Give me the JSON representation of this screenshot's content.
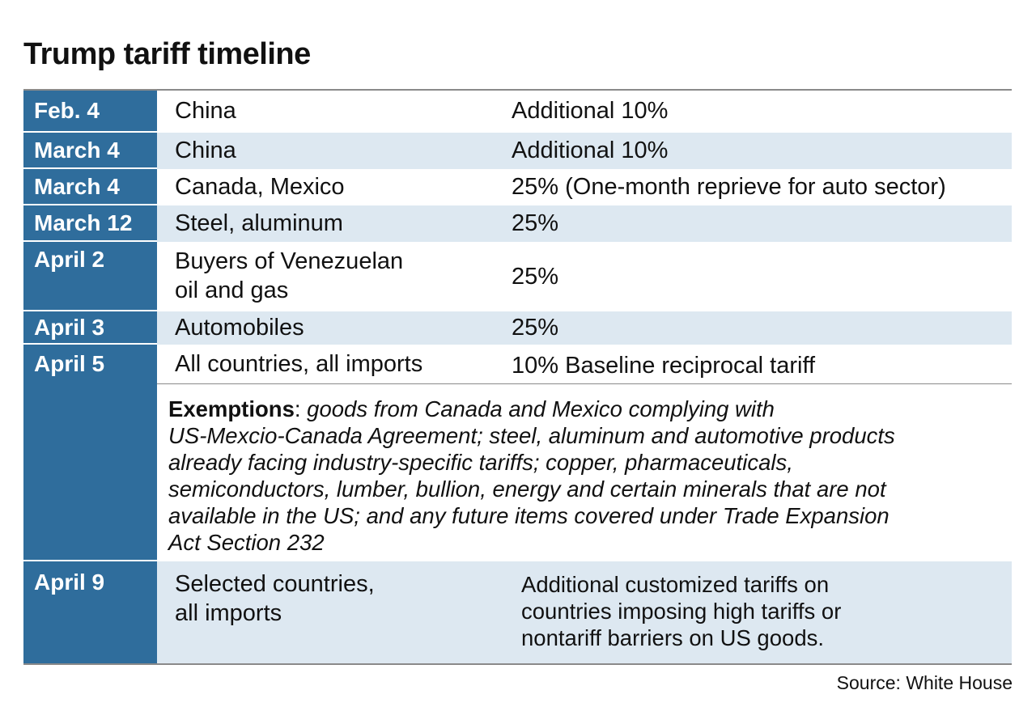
{
  "title": "Trump tariff timeline",
  "rows": [
    {
      "date": "Feb. 4",
      "what": "China",
      "rate": "Additional 10%"
    },
    {
      "date": "March 4",
      "what": "China",
      "rate": "Additional 10%"
    },
    {
      "date": "March 4",
      "what": "Canada, Mexico",
      "rate": "25% (One-month reprieve for auto sector)"
    },
    {
      "date": "March 12",
      "what": "Steel, aluminum",
      "rate": "25%"
    },
    {
      "date": "April 2",
      "what_lines": [
        "Buyers of Venezuelan",
        "oil and gas"
      ],
      "rate": "25%"
    },
    {
      "date": "April 3",
      "what": "Automobiles",
      "rate": "25%"
    },
    {
      "date": "April 5",
      "what": "All countries, all imports",
      "rate": "10% Baseline reciprocal tariff",
      "exemptions": {
        "label": "Exemptions",
        "lines": [
          "goods from Canada and Mexico complying with",
          "US-Mexcio-Canada Agreement; steel, aluminum and automotive products",
          "already facing industry-specific tariffs; copper, pharmaceuticals,",
          "semiconductors, lumber, bullion, energy and certain minerals that are not",
          "available in the US; and any future items covered under Trade Expansion",
          "Act Section 232"
        ]
      }
    },
    {
      "date": "April 9",
      "what_lines": [
        "Selected countries,",
        "all imports"
      ],
      "rate_lines": [
        "Additional customized tariffs on",
        "countries imposing high tariffs or",
        "nontariff barriers on US goods."
      ]
    }
  ],
  "source": "Source: White House",
  "colors": {
    "date_column": "#2f6d9c",
    "row_shade": "#dde8f1"
  }
}
